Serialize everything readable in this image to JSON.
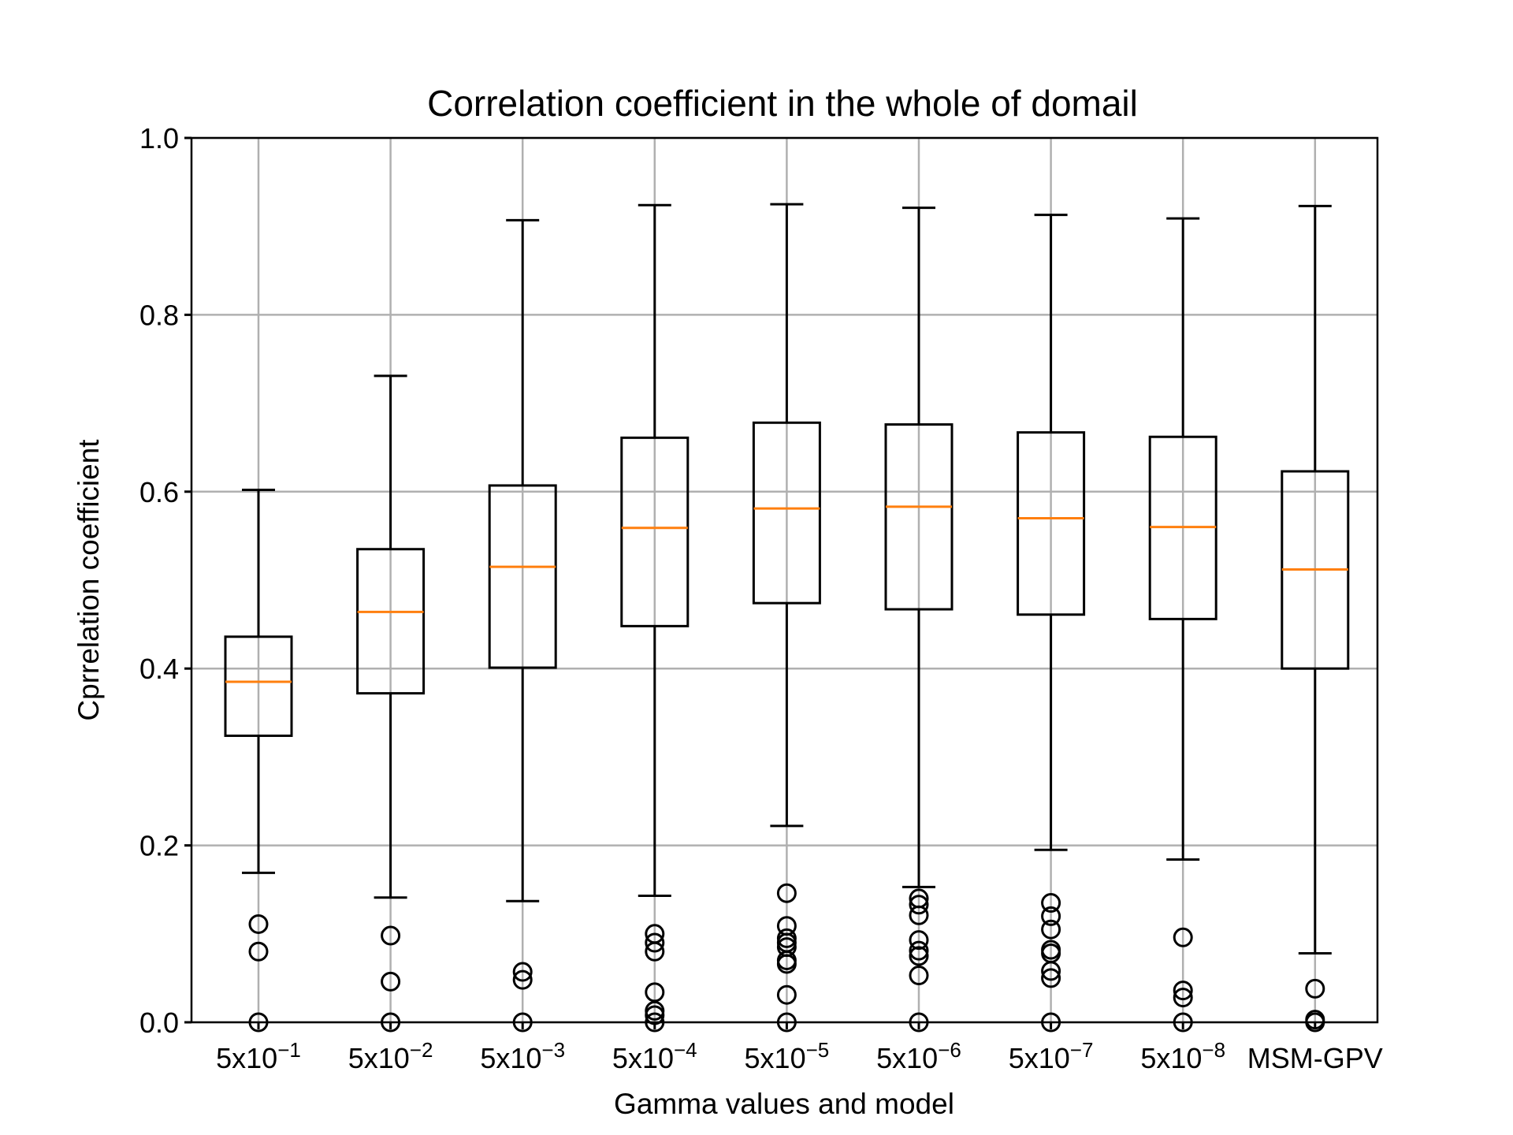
{
  "chart_data": {
    "type": "box",
    "title": "Correlation coefficient in the whole of domail",
    "xlabel": "Gamma values and model",
    "ylabel": "Cprrelation coefficient",
    "ylim": [
      0.0,
      1.0
    ],
    "yticks": [
      "0.0",
      "0.2",
      "0.4",
      "0.6",
      "0.8",
      "1.0"
    ],
    "grid": true,
    "colors": {
      "box": "#000000",
      "median": "#ff7f0e",
      "grid": "#b0b0b0"
    },
    "categories": [
      {
        "base": "5x10",
        "exp": "−1",
        "label": ""
      },
      {
        "base": "5x10",
        "exp": "−2",
        "label": ""
      },
      {
        "base": "5x10",
        "exp": "−3",
        "label": ""
      },
      {
        "base": "5x10",
        "exp": "−4",
        "label": ""
      },
      {
        "base": "5x10",
        "exp": "−5",
        "label": ""
      },
      {
        "base": "5x10",
        "exp": "−6",
        "label": ""
      },
      {
        "base": "5x10",
        "exp": "−7",
        "label": ""
      },
      {
        "base": "5x10",
        "exp": "−8",
        "label": ""
      },
      {
        "base": "",
        "exp": "",
        "label": "MSM-GPV"
      }
    ],
    "boxes": [
      {
        "whisker_low": 0.169,
        "q1": 0.324,
        "median": 0.385,
        "q3": 0.436,
        "whisker_high": 0.602,
        "fliers": [
          0.111,
          0.08,
          0.0
        ]
      },
      {
        "whisker_low": 0.141,
        "q1": 0.372,
        "median": 0.464,
        "q3": 0.535,
        "whisker_high": 0.731,
        "fliers": [
          0.098,
          0.046,
          0.0
        ]
      },
      {
        "whisker_low": 0.137,
        "q1": 0.401,
        "median": 0.515,
        "q3": 0.607,
        "whisker_high": 0.907,
        "fliers": [
          0.057,
          0.048,
          0.0
        ]
      },
      {
        "whisker_low": 0.143,
        "q1": 0.448,
        "median": 0.559,
        "q3": 0.661,
        "whisker_high": 0.924,
        "fliers": [
          0.1,
          0.09,
          0.08,
          0.034,
          0.013,
          0.008,
          0.0
        ]
      },
      {
        "whisker_low": 0.222,
        "q1": 0.474,
        "median": 0.581,
        "q3": 0.678,
        "whisker_high": 0.925,
        "fliers": [
          0.146,
          0.109,
          0.095,
          0.09,
          0.085,
          0.07,
          0.066,
          0.031,
          0.0
        ]
      },
      {
        "whisker_low": 0.153,
        "q1": 0.467,
        "median": 0.583,
        "q3": 0.676,
        "whisker_high": 0.921,
        "fliers": [
          0.14,
          0.133,
          0.121,
          0.093,
          0.081,
          0.075,
          0.053,
          0.0
        ]
      },
      {
        "whisker_low": 0.195,
        "q1": 0.461,
        "median": 0.57,
        "q3": 0.667,
        "whisker_high": 0.913,
        "fliers": [
          0.135,
          0.12,
          0.105,
          0.082,
          0.078,
          0.058,
          0.05,
          0.0
        ]
      },
      {
        "whisker_low": 0.184,
        "q1": 0.456,
        "median": 0.56,
        "q3": 0.662,
        "whisker_high": 0.909,
        "fliers": [
          0.096,
          0.036,
          0.028,
          0.0
        ]
      },
      {
        "whisker_low": 0.078,
        "q1": 0.4,
        "median": 0.512,
        "q3": 0.623,
        "whisker_high": 0.923,
        "fliers": [
          0.038,
          0.003,
          0.0
        ]
      }
    ]
  }
}
